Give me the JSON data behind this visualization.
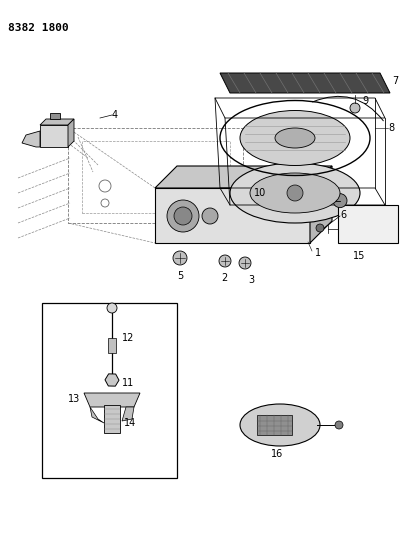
{
  "title": "8382 1800",
  "background_color": "#ffffff",
  "line_color": "#000000",
  "fig_width": 4.1,
  "fig_height": 5.33,
  "dpi": 100
}
